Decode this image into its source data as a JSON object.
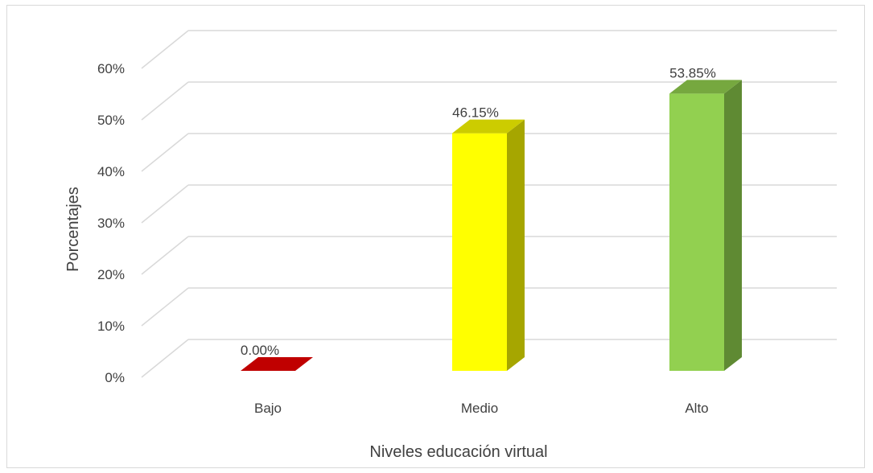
{
  "chart_data": {
    "type": "bar",
    "style": "3d-column",
    "categories": [
      "Bajo",
      "Medio",
      "Alto"
    ],
    "values": [
      0.0,
      46.15,
      53.85
    ],
    "data_labels": [
      "0.00%",
      "46.15%",
      "53.85%"
    ],
    "colors": {
      "Bajo": {
        "front": "#c00000",
        "side": "#8b0000",
        "top": "#c00000"
      },
      "Medio": {
        "front": "#ffff00",
        "side": "#a6a600",
        "top": "#cccc00"
      },
      "Alto": {
        "front": "#92d050",
        "side": "#5f8a33",
        "top": "#76a83f"
      }
    },
    "y_ticks": [
      "0%",
      "10%",
      "20%",
      "30%",
      "40%",
      "50%",
      "60%"
    ],
    "ylim": [
      0,
      60
    ],
    "xlabel": "Niveles educación virtual",
    "ylabel": "Porcentajes",
    "grid": true,
    "legend": "none"
  }
}
